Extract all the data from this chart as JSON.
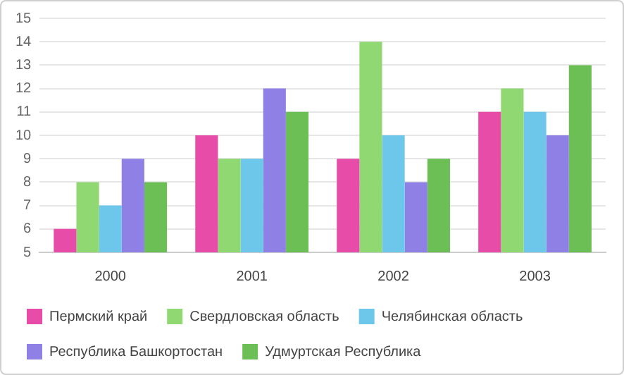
{
  "chart_data": {
    "type": "bar",
    "categories": [
      "2000",
      "2001",
      "2002",
      "2003"
    ],
    "series": [
      {
        "name": "Пермский край",
        "color": "#e64ca8",
        "values": [
          6,
          10,
          9,
          11
        ]
      },
      {
        "name": "Свердловская область",
        "color": "#8fd872",
        "values": [
          8,
          9,
          14,
          12
        ]
      },
      {
        "name": "Челябинская область",
        "color": "#6cc7ea",
        "values": [
          7,
          9,
          10,
          11
        ]
      },
      {
        "name": "Республика Башкортостан",
        "color": "#8f80e6",
        "values": [
          9,
          12,
          8,
          10
        ]
      },
      {
        "name": "Удмуртская Республика",
        "color": "#6bbf55",
        "values": [
          8,
          11,
          9,
          13
        ]
      }
    ],
    "ylim": [
      5,
      15
    ],
    "yticks": [
      5,
      6,
      7,
      8,
      9,
      10,
      11,
      12,
      13,
      14,
      15
    ],
    "grid": "y",
    "legend": "bottom"
  }
}
